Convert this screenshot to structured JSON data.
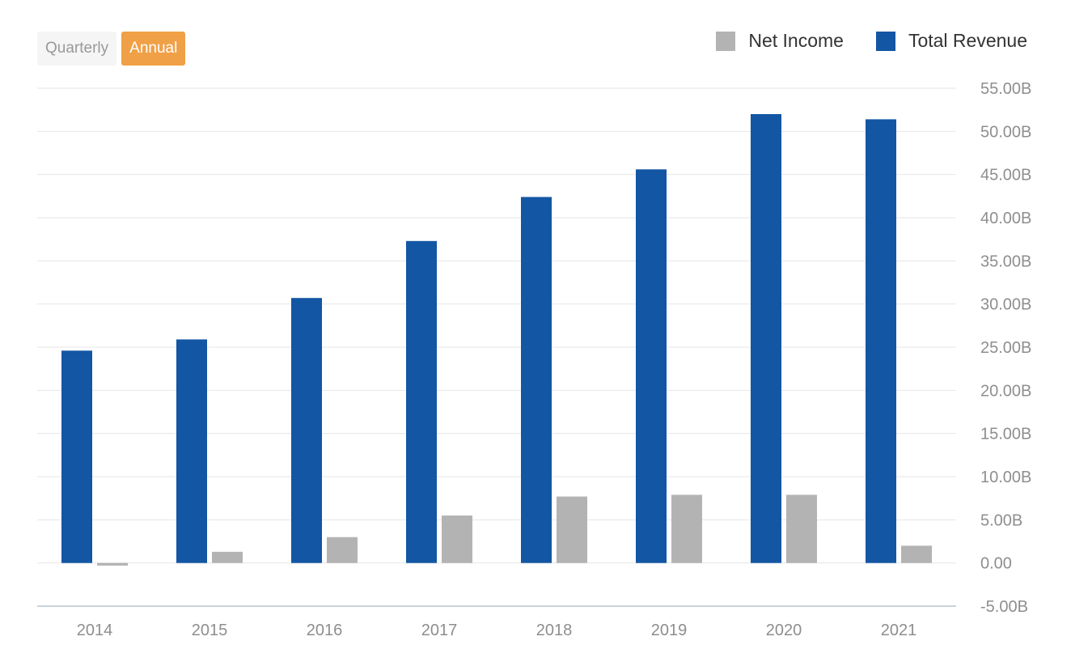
{
  "controls": {
    "period_options": [
      {
        "label": "Quarterly",
        "selected": false
      },
      {
        "label": "Annual",
        "selected": true
      }
    ]
  },
  "legend": [
    {
      "name": "Net Income",
      "color": "#b3b3b3"
    },
    {
      "name": "Total Revenue",
      "color": "#1356a3"
    }
  ],
  "chart_data": {
    "type": "bar",
    "categories": [
      "2014",
      "2015",
      "2016",
      "2017",
      "2018",
      "2019",
      "2020",
      "2021"
    ],
    "series": [
      {
        "name": "Total Revenue",
        "color": "#1356a3",
        "values": [
          24.6,
          25.9,
          30.7,
          37.3,
          42.4,
          45.6,
          52.0,
          51.4
        ]
      },
      {
        "name": "Net Income",
        "color": "#b3b3b3",
        "values": [
          -0.3,
          1.3,
          3.0,
          5.5,
          7.7,
          7.9,
          7.9,
          2.0
        ]
      }
    ],
    "ylim": [
      -5,
      55
    ],
    "yticks": [
      -5,
      0,
      5,
      10,
      15,
      20,
      25,
      30,
      35,
      40,
      45,
      50,
      55
    ],
    "ytick_labels": [
      "-5.00B",
      "0.00",
      "5.00B",
      "10.00B",
      "15.00B",
      "20.00B",
      "25.00B",
      "30.00B",
      "35.00B",
      "40.00B",
      "45.00B",
      "50.00B",
      "55.00B"
    ],
    "yaxis_side": "right",
    "grid": true,
    "legend_position": "top-right",
    "title": "",
    "xlabel": "",
    "ylabel": ""
  }
}
